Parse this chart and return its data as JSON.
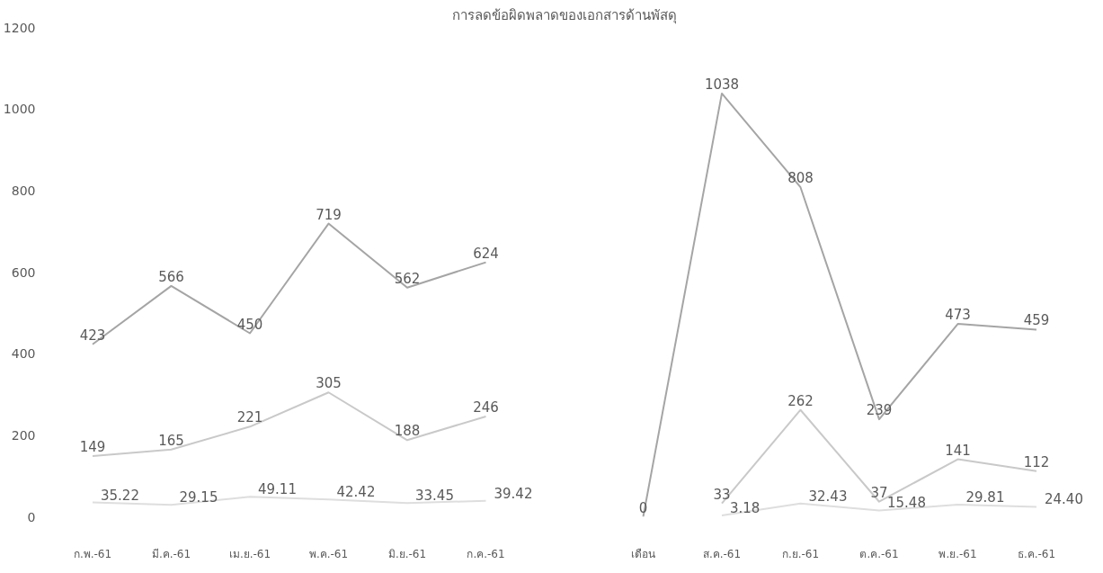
{
  "chart_data": {
    "type": "line",
    "title": "การลดข้อผิดพลาดของเอกสารด้านพัสดุ",
    "categories": [
      "ก.พ.-61",
      "มี.ค.-61",
      "เม.ย.-61",
      "พ.ค.-61",
      "มิ.ย.-61",
      "ก.ค.-61",
      null,
      "เดือน",
      "ส.ค.-61",
      "ก.ย.-61",
      "ต.ค.-61",
      "พ.ย.-61",
      "ธ.ค.-61"
    ],
    "series": [
      {
        "color": "#a5a5a5",
        "values": [
          423,
          566,
          450,
          719,
          562,
          624,
          null,
          0,
          1038,
          808,
          239,
          473,
          459
        ],
        "value_labels": [
          "423",
          "566",
          "450",
          "719",
          "562",
          "624",
          null,
          "0",
          "1038",
          "808",
          "239",
          "473",
          "459"
        ]
      },
      {
        "color": "#c9c9c9",
        "values": [
          149,
          165,
          221,
          305,
          188,
          246,
          null,
          null,
          33,
          262,
          37,
          141,
          112
        ],
        "value_labels": [
          "149",
          "165",
          "221",
          "305",
          "188",
          "246",
          null,
          null,
          "33",
          "262",
          "37",
          "141",
          "112"
        ]
      },
      {
        "color": "#dedede",
        "values": [
          35.22,
          29.15,
          49.11,
          42.42,
          33.45,
          39.42,
          null,
          null,
          3.18,
          32.43,
          15.48,
          29.81,
          24.4
        ],
        "value_labels": [
          "35.22",
          "29.15",
          "49.11",
          "42.42",
          "33.45",
          "39.42",
          null,
          null,
          "3.18",
          "32.43",
          "15.48",
          "29.81",
          "24.40"
        ]
      }
    ],
    "ylim": [
      0,
      1200
    ],
    "yticks": [
      0,
      200,
      400,
      600,
      800,
      1000,
      1200
    ],
    "grid": false,
    "marker": "none",
    "line_style": "solid"
  }
}
